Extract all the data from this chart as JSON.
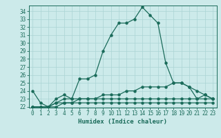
{
  "x_values": [
    0,
    1,
    2,
    3,
    4,
    5,
    6,
    7,
    8,
    9,
    10,
    11,
    12,
    13,
    14,
    15,
    16,
    17,
    18,
    19,
    20,
    21,
    22,
    23
  ],
  "line1": [
    24,
    22.5,
    22,
    23,
    23.5,
    23,
    25.5,
    25.5,
    26,
    29,
    31,
    32.5,
    32.5,
    33,
    34.5,
    33.5,
    32.5,
    27.5,
    25,
    25,
    24.5,
    23,
    23.5,
    23
  ],
  "line2": [
    22,
    22,
    22,
    22,
    22.5,
    22.5,
    22.5,
    22.5,
    22.5,
    22.5,
    22.5,
    22.5,
    22.5,
    22.5,
    22.5,
    22.5,
    22.5,
    22.5,
    22.5,
    22.5,
    22.5,
    22.5,
    22.5,
    22.5
  ],
  "line3": [
    22,
    22,
    22,
    22.5,
    22.5,
    22.5,
    23,
    23,
    23,
    23,
    23,
    23,
    23,
    23,
    23,
    23,
    23,
    23,
    23,
    23,
    23,
    23,
    23,
    23
  ],
  "line4": [
    22,
    22,
    22,
    22.5,
    23,
    23,
    23,
    23,
    23,
    23.5,
    23.5,
    23.5,
    24,
    24,
    24.5,
    24.5,
    24.5,
    24.5,
    25,
    25,
    24.5,
    24,
    23.5,
    23
  ],
  "line_color": "#1a6b5a",
  "bg_color": "#cceaea",
  "grid_color": "#aad4d4",
  "xlabel": "Humidex (Indice chaleur)",
  "ylim_min": 22,
  "ylim_max": 34.5,
  "xlim_min": -0.5,
  "xlim_max": 23.5,
  "yticks": [
    22,
    23,
    24,
    25,
    26,
    27,
    28,
    29,
    30,
    31,
    32,
    33,
    34
  ],
  "xticks": [
    0,
    1,
    2,
    3,
    4,
    5,
    6,
    7,
    8,
    9,
    10,
    11,
    12,
    13,
    14,
    15,
    16,
    17,
    18,
    19,
    20,
    21,
    22,
    23
  ]
}
